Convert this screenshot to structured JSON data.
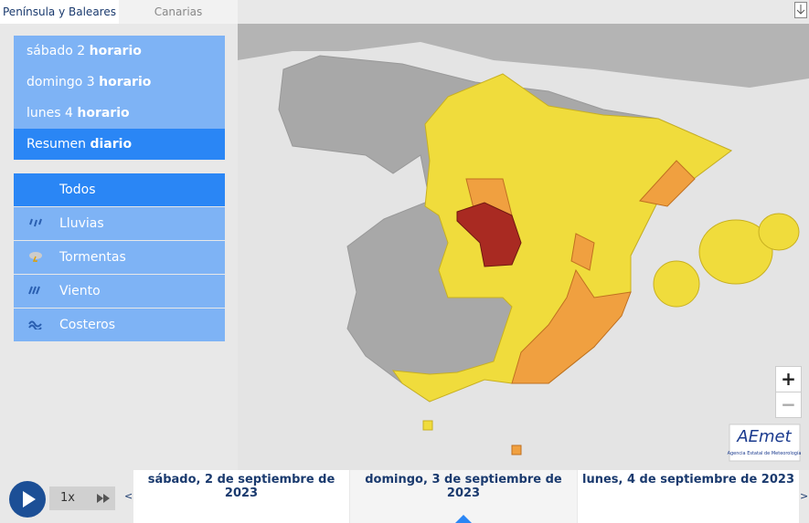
{
  "tabs": [
    "Península y Baleares",
    "Canarias"
  ],
  "periods": [
    {
      "day": "sábado 2",
      "mode": "horario"
    },
    {
      "day": "domingo 3",
      "mode": "horario"
    },
    {
      "day": "lunes 4",
      "mode": "horario"
    },
    {
      "day": "Resumen",
      "mode": "diario"
    }
  ],
  "filters": [
    "Todos",
    "Lluvias",
    "Tormentas",
    "Viento",
    "Costeros"
  ],
  "zoom": [
    "+",
    "−"
  ],
  "logo": {
    "name": "AEmet",
    "subtitle": "Agencia Estatal de Meteorología"
  },
  "player": {
    "speed": "1x"
  },
  "timeline": {
    "prev": "<",
    "next": ">",
    "dates": [
      "sábado, 2 de septiembre de 2023",
      "domingo, 3 de septiembre de 2023",
      "lunes, 4 de septiembre de 2023"
    ]
  }
}
